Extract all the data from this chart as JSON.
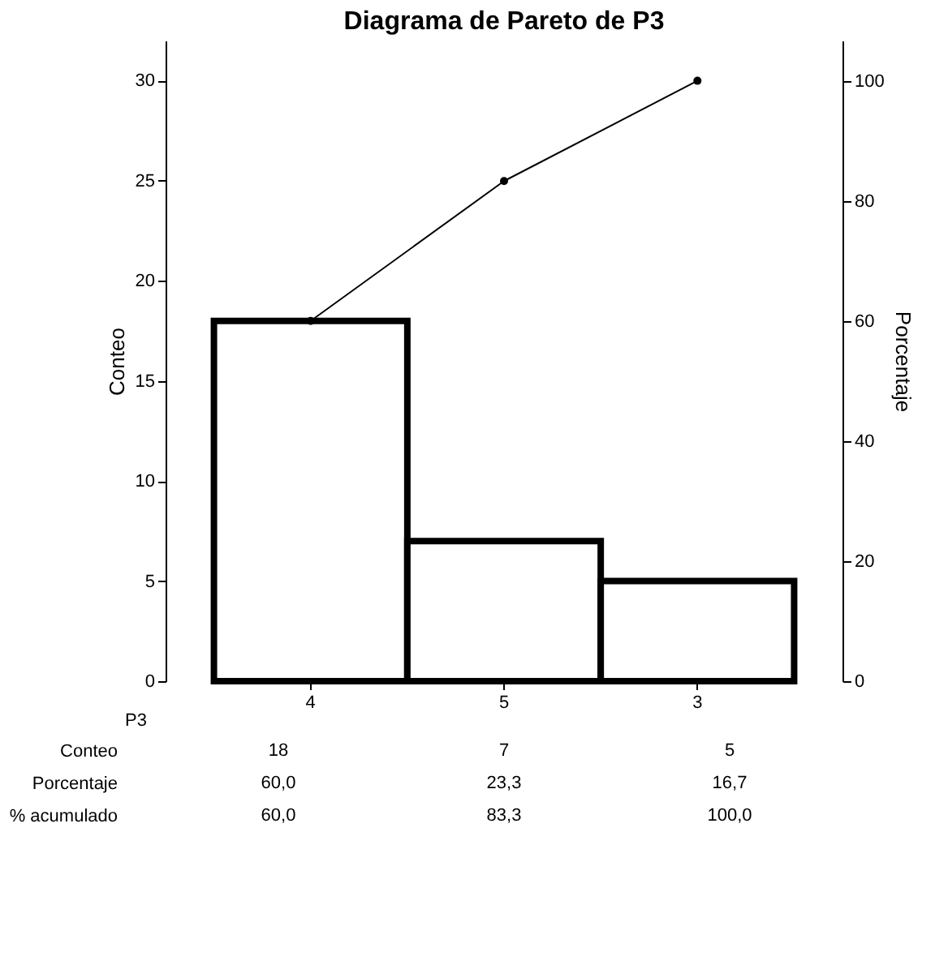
{
  "chart_data": {
    "type": "bar",
    "title": "Diagrama de Pareto de P3",
    "xlabel": "P3",
    "ylabel": "Conteo",
    "y2label": "Porcentaje",
    "categories": [
      "4",
      "5",
      "3"
    ],
    "series": [
      {
        "color": "#000000",
        "values": [
          18,
          7,
          5
        ],
        "value_labels": [
          "18",
          "7",
          "5"
        ]
      },
      {
        "type": "line",
        "axis": "y2",
        "color": "#000000",
        "marker": "circle",
        "values": [
          60,
          83.3,
          100
        ],
        "value_labels": [
          "60,0",
          "83,3",
          "100,0"
        ]
      }
    ],
    "annotations": [
      "Conteo",
      "Porcentaje",
      "% acumulado",
      "60,0",
      "23,3",
      "16,7"
    ],
    "ylim": [
      0,
      32
    ],
    "yticks": [
      0,
      5,
      10,
      15,
      20,
      25,
      30
    ],
    "y2lim": [
      0,
      106.7
    ],
    "y2ticks": [
      0,
      20,
      40,
      60,
      80,
      100
    ],
    "grid": false
  }
}
